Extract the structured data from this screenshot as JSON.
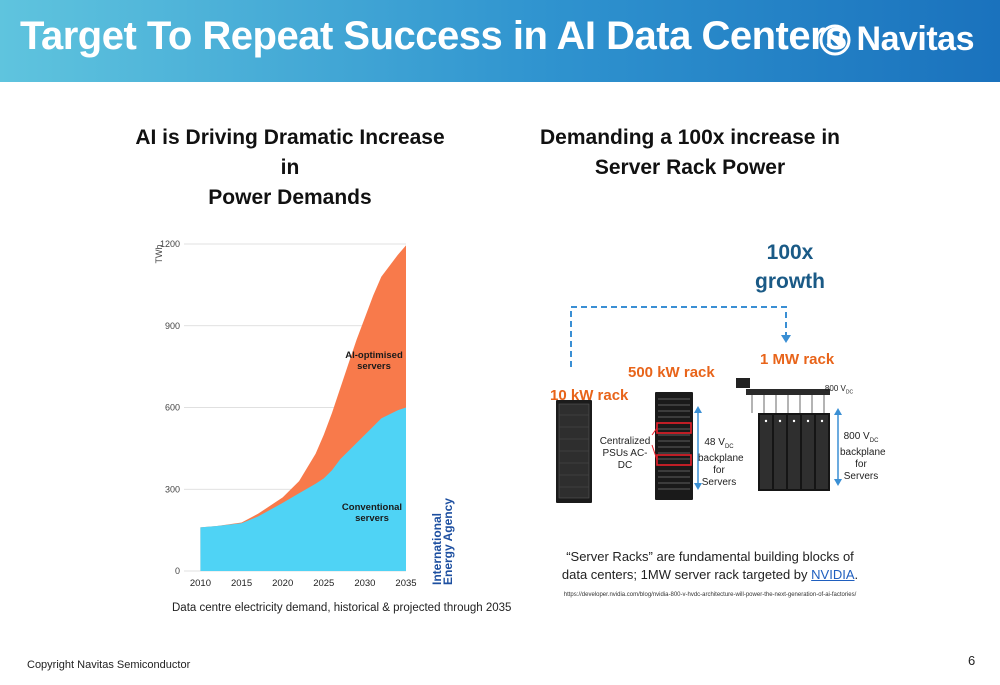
{
  "header": {
    "title": "Target To Repeat Success in AI Data Centers",
    "logo_text": "Navitas",
    "logo_icon": "navitas-n-icon"
  },
  "left": {
    "title_line1": "AI is Driving Dramatic Increase in",
    "title_line2": "Power Demands",
    "caption": "Data centre electricity demand, historical & projected through 2035",
    "source_line1": "International",
    "source_line2": "Energy Agency"
  },
  "chart_data": {
    "type": "area",
    "ylabel": "TWh",
    "ylim": [
      0,
      1200
    ],
    "yticks": [
      "0",
      "300",
      "600",
      "900",
      "1200"
    ],
    "xticks": [
      "2010",
      "2015",
      "2020",
      "2025",
      "2030",
      "2035"
    ],
    "x": [
      2010,
      2012,
      2015,
      2017,
      2020,
      2022,
      2024,
      2025,
      2026,
      2027,
      2028,
      2029,
      2030,
      2031,
      2032,
      2033,
      2034,
      2035
    ],
    "series": [
      {
        "name": "Conventional servers",
        "label_line1": "Conventional",
        "label_line2": "servers",
        "color": "#4fd3f5",
        "values": [
          160,
          165,
          175,
          200,
          250,
          285,
          320,
          340,
          370,
          410,
          440,
          470,
          500,
          530,
          560,
          575,
          590,
          600
        ]
      },
      {
        "name": "AI-optimised servers",
        "label_line1": "AI-optimised",
        "label_line2": "servers",
        "color": "#f87a4b",
        "values": [
          160,
          165,
          178,
          210,
          270,
          330,
          430,
          500,
          580,
          670,
          760,
          850,
          930,
          1010,
          1080,
          1120,
          1160,
          1195
        ]
      }
    ]
  },
  "right": {
    "title_line1": "Demanding a 100x increase in",
    "title_line2": "Server Rack Power",
    "growth_line1": "100x",
    "growth_line2": "growth",
    "rack_10kw": "10 kW rack",
    "rack_500kw": "500 kW rack",
    "rack_1mw": "1 MW rack",
    "psu_line1": "Centralized",
    "psu_line2": "PSUs AC-DC",
    "v48_line1": "48 V",
    "v48_sub": "DC",
    "v48_line2": "backplane",
    "v48_line3": "for Servers",
    "v800_top": "800 V",
    "v800_top_sub": "DC",
    "v800_line1": "800 V",
    "v800_sub": "DC",
    "v800_line2": "backplane",
    "v800_line3": "for Servers",
    "footnote_part1": "“Server Racks” are fundamental building blocks of data centers; 1MW server rack targeted by ",
    "footnote_link": "NVIDIA",
    "footnote_end": ".",
    "url": "https://developer.nvidia.com/blog/nvidia-800-v-hvdc-architecture-will-power-the-next-generation-of-ai-factories/"
  },
  "footer": {
    "copyright": "Copyright Navitas Semiconductor",
    "page": "6"
  },
  "colors": {
    "accent_orange": "#e8641a",
    "growth_blue": "#1a5a86",
    "dashed_blue": "#3a8fd4"
  }
}
